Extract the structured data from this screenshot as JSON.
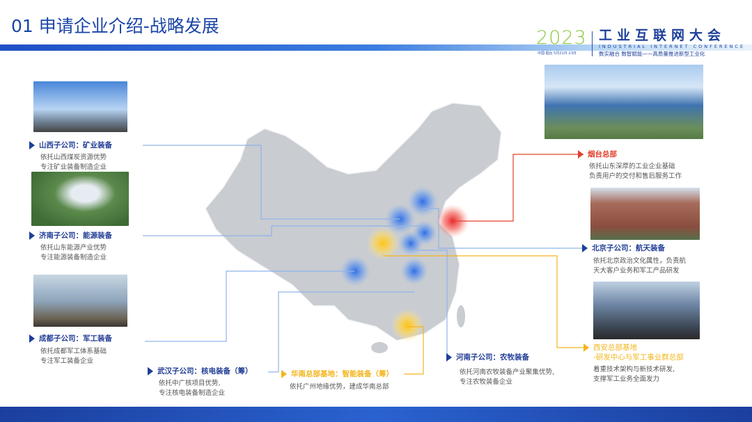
{
  "title": "01 申请企业介绍-战略发展",
  "logo": {
    "year": "2023",
    "location": "中国·烟台  5月21日-23日",
    "name_cn": "工业互联网大会",
    "name_en": "INDUSTRIAL INTERNET CONFERENCE",
    "slogan": "数实融合  数智赋能——高质量推进新型工业化"
  },
  "colors": {
    "accent_blue": "#233e96",
    "accent_yellow": "#f3b51c",
    "accent_red": "#e2402b",
    "map_gray": "#c9ccd1"
  },
  "locations": [
    {
      "id": "shanxi",
      "label": "山西子公司：矿业装备",
      "desc": [
        "依托山西煤炭资源优势",
        "专注矿业装备制造企业"
      ]
    },
    {
      "id": "jinan",
      "label": "济南子公司：能源装备",
      "desc": [
        "依托山东能源产业优势",
        "专注能源装备制造企业"
      ]
    },
    {
      "id": "chengdu",
      "label": "成都子公司：军工装备",
      "desc": [
        "依托成都军工体系基础",
        "专注军工装备企业"
      ]
    },
    {
      "id": "wuhan",
      "label": "武汉子公司：核电装备（筹）",
      "desc": [
        "依托中广核项目优势,",
        "专注核电装备制造企业"
      ]
    },
    {
      "id": "huanan",
      "label": "华南总部基地：智能装备（筹）",
      "desc": [
        "依托广州地缘优势，建成华南总部"
      ]
    },
    {
      "id": "henan",
      "label": "河南子公司：农牧装备",
      "desc": [
        "依托河南农牧装备产业聚集优势,",
        "专注农牧装备企业"
      ]
    },
    {
      "id": "yantai",
      "label": "烟台总部",
      "desc": [
        "依托山东深厚的工业企业基础",
        "负责用户的交付和售后服务工作"
      ]
    },
    {
      "id": "beijing",
      "label": "北京子公司：航天装备",
      "desc": [
        "依托北京政治文化属性，负责航",
        "天大客户业务和军工产品研发"
      ]
    },
    {
      "id": "xian",
      "label": [
        "西安总部基地",
        "-研发中心与军工事业群总部"
      ],
      "desc": [
        "着重技术架构与新技术研发,",
        "支撑军工业务全面发力"
      ]
    }
  ]
}
